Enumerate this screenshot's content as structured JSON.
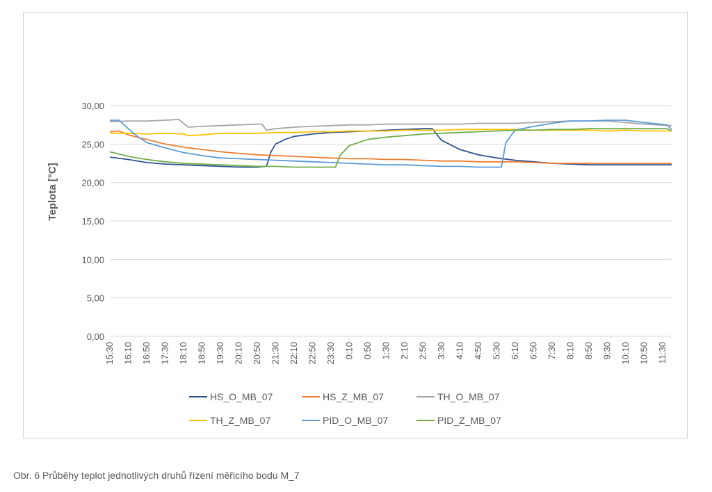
{
  "caption": "Obr. 6 Průběhy teplot jednotlivých druhů řízení měřicího bodu M_7",
  "chart_data": {
    "type": "line",
    "title": "",
    "ylabel": "Teplota [°C]",
    "xlabel": "",
    "ylim": [
      0,
      30
    ],
    "yticks": [
      0,
      5,
      10,
      15,
      20,
      25,
      30
    ],
    "ytick_labels": [
      "0,00",
      "5,00",
      "10,00",
      "15,00",
      "20,00",
      "25,00",
      "30,00"
    ],
    "grid": true,
    "legend_position": "bottom",
    "x_start": "15:30",
    "x_end": "11:50",
    "x_step_minutes": 40,
    "x_tick_labels": [
      "15:30",
      "16:10",
      "16:50",
      "17:30",
      "18:10",
      "18:50",
      "19:30",
      "20:10",
      "20:50",
      "21:30",
      "22:10",
      "22:50",
      "23:30",
      "0:10",
      "0:50",
      "1:30",
      "2:10",
      "2:50",
      "3:30",
      "4:10",
      "4:50",
      "5:30",
      "6:10",
      "6:50",
      "7:30",
      "8:10",
      "8:50",
      "9:30",
      "10:10",
      "10:50",
      "11:30"
    ],
    "series": [
      {
        "name": "HS_O_MB_07",
        "color": "#2f528f",
        "points": [
          [
            "15:30",
            23.3
          ],
          [
            "16:10",
            23.0
          ],
          [
            "16:50",
            22.6
          ],
          [
            "17:30",
            22.4
          ],
          [
            "18:10",
            22.3
          ],
          [
            "18:50",
            22.2
          ],
          [
            "19:30",
            22.1
          ],
          [
            "20:10",
            22.0
          ],
          [
            "20:50",
            22.0
          ],
          [
            "21:10",
            22.1
          ],
          [
            "21:20",
            24.0
          ],
          [
            "21:30",
            25.0
          ],
          [
            "21:50",
            25.6
          ],
          [
            "22:10",
            26.0
          ],
          [
            "22:50",
            26.3
          ],
          [
            "23:30",
            26.5
          ],
          [
            "0:10",
            26.6
          ],
          [
            "0:50",
            26.7
          ],
          [
            "1:30",
            26.8
          ],
          [
            "2:10",
            26.9
          ],
          [
            "2:50",
            27.0
          ],
          [
            "3:10",
            27.0
          ],
          [
            "3:30",
            25.5
          ],
          [
            "4:10",
            24.3
          ],
          [
            "4:50",
            23.6
          ],
          [
            "5:30",
            23.2
          ],
          [
            "6:10",
            22.9
          ],
          [
            "6:50",
            22.7
          ],
          [
            "7:30",
            22.5
          ],
          [
            "8:10",
            22.4
          ],
          [
            "8:50",
            22.3
          ],
          [
            "9:30",
            22.3
          ],
          [
            "10:10",
            22.3
          ],
          [
            "10:50",
            22.3
          ],
          [
            "11:50",
            22.3
          ]
        ]
      },
      {
        "name": "HS_Z_MB_07",
        "color": "#ed7d31",
        "points": [
          [
            "15:30",
            26.6
          ],
          [
            "15:50",
            26.7
          ],
          [
            "16:10",
            26.2
          ],
          [
            "16:50",
            25.6
          ],
          [
            "17:30",
            25.0
          ],
          [
            "18:10",
            24.6
          ],
          [
            "18:50",
            24.3
          ],
          [
            "19:30",
            24.0
          ],
          [
            "20:10",
            23.8
          ],
          [
            "20:50",
            23.6
          ],
          [
            "21:30",
            23.5
          ],
          [
            "22:10",
            23.4
          ],
          [
            "22:50",
            23.3
          ],
          [
            "23:30",
            23.2
          ],
          [
            "0:10",
            23.1
          ],
          [
            "0:50",
            23.1
          ],
          [
            "1:30",
            23.0
          ],
          [
            "2:10",
            23.0
          ],
          [
            "2:50",
            22.9
          ],
          [
            "3:30",
            22.8
          ],
          [
            "4:10",
            22.8
          ],
          [
            "4:50",
            22.7
          ],
          [
            "5:30",
            22.7
          ],
          [
            "6:10",
            22.7
          ],
          [
            "6:50",
            22.6
          ],
          [
            "7:30",
            22.5
          ],
          [
            "8:10",
            22.5
          ],
          [
            "8:50",
            22.5
          ],
          [
            "9:30",
            22.5
          ],
          [
            "10:10",
            22.5
          ],
          [
            "10:50",
            22.5
          ],
          [
            "11:50",
            22.5
          ]
        ]
      },
      {
        "name": "TH_O_MB_07",
        "color": "#a5a5a5",
        "points": [
          [
            "15:30",
            27.9
          ],
          [
            "16:10",
            28.0
          ],
          [
            "16:50",
            28.0
          ],
          [
            "17:30",
            28.1
          ],
          [
            "18:00",
            28.2
          ],
          [
            "18:20",
            27.2
          ],
          [
            "18:50",
            27.3
          ],
          [
            "19:30",
            27.4
          ],
          [
            "20:10",
            27.5
          ],
          [
            "20:50",
            27.6
          ],
          [
            "21:00",
            27.6
          ],
          [
            "21:10",
            26.8
          ],
          [
            "21:30",
            27.0
          ],
          [
            "22:10",
            27.2
          ],
          [
            "22:50",
            27.3
          ],
          [
            "23:30",
            27.4
          ],
          [
            "0:10",
            27.5
          ],
          [
            "0:50",
            27.5
          ],
          [
            "1:30",
            27.6
          ],
          [
            "2:10",
            27.6
          ],
          [
            "2:50",
            27.6
          ],
          [
            "3:30",
            27.6
          ],
          [
            "4:10",
            27.6
          ],
          [
            "4:50",
            27.7
          ],
          [
            "5:30",
            27.7
          ],
          [
            "6:10",
            27.7
          ],
          [
            "6:50",
            27.8
          ],
          [
            "7:30",
            27.9
          ],
          [
            "8:10",
            28.0
          ],
          [
            "8:50",
            28.0
          ],
          [
            "9:30",
            28.0
          ],
          [
            "10:10",
            27.8
          ],
          [
            "10:50",
            27.6
          ],
          [
            "11:50",
            27.4
          ]
        ]
      },
      {
        "name": "TH_Z_MB_07",
        "color": "#ffc000",
        "points": [
          [
            "15:30",
            26.4
          ],
          [
            "16:10",
            26.4
          ],
          [
            "16:50",
            26.3
          ],
          [
            "17:30",
            26.4
          ],
          [
            "18:10",
            26.3
          ],
          [
            "18:20",
            26.1
          ],
          [
            "18:50",
            26.2
          ],
          [
            "19:30",
            26.4
          ],
          [
            "20:10",
            26.4
          ],
          [
            "20:50",
            26.4
          ],
          [
            "21:30",
            26.5
          ],
          [
            "22:10",
            26.5
          ],
          [
            "22:50",
            26.6
          ],
          [
            "23:30",
            26.6
          ],
          [
            "0:10",
            26.7
          ],
          [
            "0:50",
            26.7
          ],
          [
            "1:30",
            26.7
          ],
          [
            "2:10",
            26.8
          ],
          [
            "2:50",
            26.8
          ],
          [
            "3:30",
            26.8
          ],
          [
            "4:10",
            26.9
          ],
          [
            "4:50",
            26.9
          ],
          [
            "5:30",
            26.9
          ],
          [
            "6:10",
            26.9
          ],
          [
            "6:50",
            26.8
          ],
          [
            "7:30",
            26.8
          ],
          [
            "8:10",
            26.8
          ],
          [
            "8:50",
            26.8
          ],
          [
            "9:30",
            26.7
          ],
          [
            "10:10",
            26.8
          ],
          [
            "10:50",
            26.7
          ],
          [
            "11:50",
            26.7
          ]
        ]
      },
      {
        "name": "PID_O_MB_07",
        "color": "#5b9bd5",
        "points": [
          [
            "15:30",
            28.1
          ],
          [
            "15:50",
            28.1
          ],
          [
            "16:10",
            27.0
          ],
          [
            "16:30",
            26.0
          ],
          [
            "16:50",
            25.2
          ],
          [
            "17:30",
            24.5
          ],
          [
            "18:10",
            23.9
          ],
          [
            "18:50",
            23.5
          ],
          [
            "19:30",
            23.2
          ],
          [
            "20:10",
            23.1
          ],
          [
            "20:50",
            23.0
          ],
          [
            "21:30",
            22.9
          ],
          [
            "22:10",
            22.8
          ],
          [
            "22:50",
            22.7
          ],
          [
            "23:30",
            22.6
          ],
          [
            "0:10",
            22.5
          ],
          [
            "0:50",
            22.4
          ],
          [
            "1:30",
            22.3
          ],
          [
            "2:10",
            22.3
          ],
          [
            "2:50",
            22.2
          ],
          [
            "3:30",
            22.1
          ],
          [
            "4:10",
            22.1
          ],
          [
            "4:50",
            22.0
          ],
          [
            "5:30",
            22.0
          ],
          [
            "5:40",
            22.0
          ],
          [
            "5:50",
            25.2
          ],
          [
            "6:10",
            26.8
          ],
          [
            "6:50",
            27.3
          ],
          [
            "7:30",
            27.7
          ],
          [
            "8:10",
            28.0
          ],
          [
            "8:50",
            28.0
          ],
          [
            "9:30",
            28.1
          ],
          [
            "10:10",
            28.1
          ],
          [
            "10:50",
            27.8
          ],
          [
            "11:40",
            27.5
          ],
          [
            "11:50",
            26.9
          ]
        ]
      },
      {
        "name": "PID_Z_MB_07",
        "color": "#70ad47",
        "points": [
          [
            "15:30",
            24.0
          ],
          [
            "16:10",
            23.4
          ],
          [
            "16:50",
            23.0
          ],
          [
            "17:30",
            22.7
          ],
          [
            "18:10",
            22.5
          ],
          [
            "18:50",
            22.4
          ],
          [
            "19:30",
            22.3
          ],
          [
            "20:10",
            22.2
          ],
          [
            "20:50",
            22.1
          ],
          [
            "21:30",
            22.1
          ],
          [
            "22:10",
            22.0
          ],
          [
            "22:50",
            22.0
          ],
          [
            "23:30",
            22.0
          ],
          [
            "23:40",
            22.0
          ],
          [
            "23:50",
            23.5
          ],
          [
            "0:10",
            24.8
          ],
          [
            "0:50",
            25.6
          ],
          [
            "1:30",
            25.9
          ],
          [
            "2:10",
            26.1
          ],
          [
            "2:50",
            26.3
          ],
          [
            "3:30",
            26.4
          ],
          [
            "4:10",
            26.5
          ],
          [
            "4:50",
            26.6
          ],
          [
            "5:30",
            26.7
          ],
          [
            "6:10",
            26.8
          ],
          [
            "6:50",
            26.8
          ],
          [
            "7:30",
            26.9
          ],
          [
            "8:10",
            26.9
          ],
          [
            "8:50",
            27.0
          ],
          [
            "9:30",
            27.0
          ],
          [
            "10:10",
            27.0
          ],
          [
            "10:50",
            27.0
          ],
          [
            "11:40",
            27.0
          ],
          [
            "11:50",
            26.7
          ]
        ]
      }
    ]
  }
}
